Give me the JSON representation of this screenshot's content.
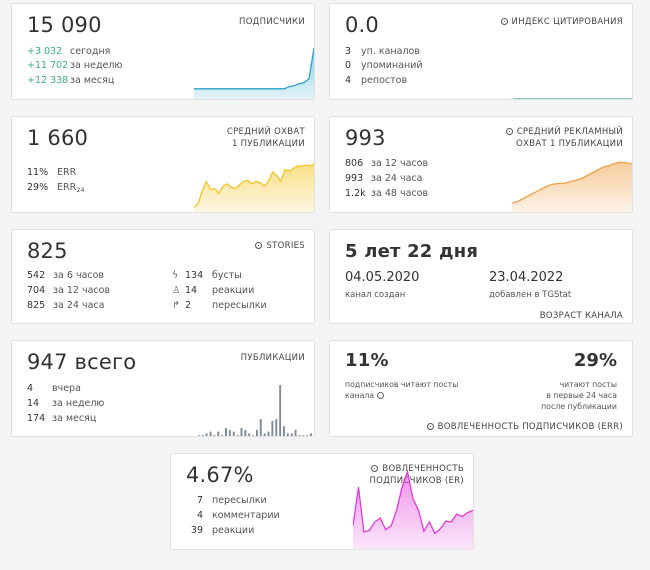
{
  "subscribers": {
    "value": "15 090",
    "title": "ПОДПИСЧИКИ",
    "rows": [
      {
        "num": "+3 032",
        "label": "сегодня"
      },
      {
        "num": "+11 702",
        "label": "за неделю"
      },
      {
        "num": "+12 338",
        "label": "за месяц"
      }
    ]
  },
  "citation": {
    "value": "0.0",
    "title": "ИНДЕКС ЦИТИРОВАНИЯ",
    "rows": [
      {
        "num": "3",
        "label": "уп. каналов"
      },
      {
        "num": "0",
        "label": "упоминаний"
      },
      {
        "num": "4",
        "label": "репостов"
      }
    ]
  },
  "reach": {
    "value": "1 660",
    "title1": "СРЕДНИЙ ОХВАТ",
    "title2": "1 ПУБЛИКАЦИИ",
    "rows": [
      {
        "num": "11%",
        "label": "ERR"
      },
      {
        "num": "29%",
        "label": "ERR",
        "sub": "24"
      }
    ]
  },
  "ad_reach": {
    "value": "993",
    "title1": "СРЕДНИЙ РЕКЛАМНЫЙ",
    "title2": "ОХВАТ 1 ПУБЛИКАЦИИ",
    "rows": [
      {
        "num": "806",
        "label": "за 12 часов"
      },
      {
        "num": "993",
        "label": "за 24 часа"
      },
      {
        "num": "1.2k",
        "label": "за 48 часов"
      }
    ]
  },
  "stories": {
    "value": "825",
    "title": "STORIES",
    "left_rows": [
      {
        "num": "542",
        "label": "за 6 часов"
      },
      {
        "num": "704",
        "label": "за 12 часов"
      },
      {
        "num": "825",
        "label": "за 24 часа"
      }
    ],
    "right_rows": [
      {
        "icon": "lightning-icon",
        "num": "134",
        "label": "бусты"
      },
      {
        "icon": "thumbs-up-icon",
        "num": "14",
        "label": "реакции"
      },
      {
        "icon": "share-arrow-icon",
        "num": "2",
        "label": "пересылки"
      }
    ]
  },
  "age": {
    "value": "5 лет 22 дня",
    "created_date": "04.05.2020",
    "created_label": "канал создан",
    "added_date": "23.04.2022",
    "added_label": "добавлен в TGStat",
    "footer": "ВОЗРАСТ КАНАЛА"
  },
  "publications": {
    "value": "947 всего",
    "title": "ПУБЛИКАЦИИ",
    "rows": [
      {
        "num": "4",
        "label": "вчера"
      },
      {
        "num": "14",
        "label": "за неделю"
      },
      {
        "num": "174",
        "label": "за месяц"
      }
    ],
    "bars": [
      1,
      1,
      2,
      3,
      1,
      3,
      1,
      5,
      4,
      3,
      1,
      5,
      4,
      2,
      1,
      4,
      10,
      2,
      3,
      9,
      10,
      29,
      6,
      2,
      2,
      4,
      1,
      1,
      1,
      2
    ]
  },
  "err": {
    "left_value": "11%",
    "left_desc1": "подписчиков читают посты",
    "left_desc2": "канала",
    "right_value": "29%",
    "right_desc1": "читают посты",
    "right_desc2": "в первые 24 часа",
    "right_desc3": "после публикации",
    "footer": "ВОВЛЕЧЕННОСТЬ ПОДПИСЧИКОВ (ERR)"
  },
  "er": {
    "value": "4.67%",
    "title1": "ВОВЛЕЧЕННОСТЬ",
    "title2": "ПОДПИСЧИКОВ (ER)",
    "rows": [
      {
        "num": "7",
        "label": "пересылки"
      },
      {
        "num": "4",
        "label": "комментарии"
      },
      {
        "num": "39",
        "label": "реакции"
      }
    ]
  },
  "colors": {
    "blue": "#2aa3cc",
    "green": "#3caf7a",
    "yellow": "#f5c324",
    "orange": "#f0a24a",
    "magenta": "#e23ad8",
    "gray_bar": "#7e8a97"
  },
  "sparks": {
    "subscribers": [
      11,
      11,
      11,
      11,
      11,
      11,
      11,
      11,
      11,
      11,
      11,
      11,
      11,
      11,
      11,
      11,
      11,
      11,
      11,
      11.2,
      11.3,
      11.5,
      11.6,
      12,
      15
    ],
    "citation": [
      0,
      0,
      0,
      0,
      0,
      0,
      0,
      0,
      0,
      0
    ],
    "reach": [
      0.2,
      0.35,
      0.9,
      1.3,
      0.95,
      1.0,
      0.8,
      1.1,
      1.2,
      1.05,
      1.0,
      1.15,
      1.3,
      1.35,
      1.2,
      1.3,
      1.25,
      1.1,
      1.3,
      1.7,
      1.55,
      1.3,
      1.8,
      1.75,
      1.85,
      1.95,
      1.95,
      2.0,
      1.95,
      2.05
    ],
    "ad_reach": [
      0.3,
      0.35,
      0.45,
      0.55,
      0.65,
      0.75,
      0.85,
      0.92,
      0.95,
      0.95,
      1.0,
      1.05,
      1.1,
      1.2,
      1.3,
      1.4,
      1.5,
      1.55,
      1.62,
      1.66,
      1.64,
      1.6
    ],
    "er": [
      3,
      8,
      2.2,
      2.4,
      3.5,
      4,
      2.5,
      3,
      5,
      8,
      10,
      6.5,
      5,
      2.3,
      3.5,
      2,
      2.6,
      3.6,
      3.5,
      4.5,
      4.2,
      4.7,
      5
    ]
  }
}
